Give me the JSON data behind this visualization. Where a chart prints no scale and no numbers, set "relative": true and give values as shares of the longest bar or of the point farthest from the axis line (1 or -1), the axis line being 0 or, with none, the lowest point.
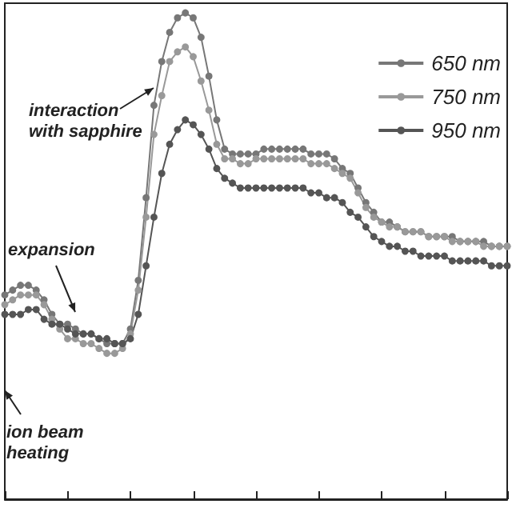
{
  "chart_data": {
    "type": "line",
    "relative": true,
    "categories": [
      null,
      null,
      null,
      null,
      null,
      null,
      null,
      null,
      null,
      null,
      null,
      null,
      null,
      null,
      null,
      null,
      null,
      null,
      null,
      null,
      null,
      null,
      null,
      null,
      null,
      null,
      null,
      null,
      null,
      null,
      null,
      null,
      null,
      null,
      null,
      null,
      null,
      null,
      null,
      null,
      null,
      null,
      null,
      null,
      null,
      null,
      null,
      null,
      null,
      null,
      null,
      null,
      null,
      null,
      null,
      null,
      null,
      null,
      null,
      null,
      null,
      null,
      null,
      null,
      null
    ],
    "series": [
      {
        "name": "650 nm",
        "color": "#777777",
        "values": [
          0.42,
          0.43,
          0.44,
          0.44,
          0.43,
          0.41,
          0.38,
          0.36,
          0.36,
          0.35,
          0.34,
          0.34,
          0.33,
          0.32,
          0.32,
          0.32,
          0.35,
          0.45,
          0.62,
          0.81,
          0.9,
          0.96,
          0.99,
          1,
          0.99,
          0.95,
          0.87,
          0.78,
          0.72,
          0.71,
          0.71,
          0.71,
          0.71,
          0.72,
          0.72,
          0.72,
          0.72,
          0.72,
          0.72,
          0.71,
          0.71,
          0.71,
          0.7,
          0.68,
          0.67,
          0.64,
          0.61,
          0.59,
          0.57,
          0.57,
          0.56,
          0.55,
          0.55,
          0.55,
          0.54,
          0.54,
          0.54,
          0.54,
          0.53,
          0.53,
          0.53,
          0.53,
          0.52,
          0.52,
          0.52
        ]
      },
      {
        "name": "750 nm",
        "color": "#999999",
        "values": [
          0.4,
          0.41,
          0.42,
          0.42,
          0.42,
          0.4,
          0.37,
          0.35,
          0.33,
          0.33,
          0.32,
          0.32,
          0.31,
          0.3,
          0.3,
          0.31,
          0.34,
          0.43,
          0.58,
          0.75,
          0.83,
          0.9,
          0.92,
          0.93,
          0.91,
          0.86,
          0.8,
          0.73,
          0.7,
          0.7,
          0.69,
          0.69,
          0.7,
          0.7,
          0.7,
          0.7,
          0.7,
          0.7,
          0.7,
          0.69,
          0.69,
          0.69,
          0.68,
          0.67,
          0.66,
          0.63,
          0.6,
          0.58,
          0.57,
          0.56,
          0.56,
          0.55,
          0.55,
          0.55,
          0.54,
          0.54,
          0.54,
          0.53,
          0.53,
          0.53,
          0.53,
          0.52,
          0.52,
          0.52,
          0.52
        ]
      },
      {
        "name": "950 nm",
        "color": "#555555",
        "values": [
          0.38,
          0.38,
          0.38,
          0.39,
          0.39,
          0.37,
          0.36,
          0.36,
          0.35,
          0.34,
          0.34,
          0.34,
          0.33,
          0.33,
          0.32,
          0.32,
          0.33,
          0.38,
          0.48,
          0.58,
          0.67,
          0.73,
          0.76,
          0.78,
          0.77,
          0.75,
          0.72,
          0.68,
          0.66,
          0.65,
          0.64,
          0.64,
          0.64,
          0.64,
          0.64,
          0.64,
          0.64,
          0.64,
          0.64,
          0.63,
          0.63,
          0.62,
          0.62,
          0.61,
          0.59,
          0.58,
          0.56,
          0.54,
          0.53,
          0.52,
          0.52,
          0.51,
          0.51,
          0.5,
          0.5,
          0.5,
          0.5,
          0.49,
          0.49,
          0.49,
          0.49,
          0.49,
          0.48,
          0.48,
          0.48
        ]
      }
    ],
    "annotations": [
      "interaction\nwith sapphire",
      "expansion",
      "ion beam\nheating"
    ],
    "legend": "top right",
    "marker": "circle",
    "line_style": "solid",
    "grid": false
  }
}
